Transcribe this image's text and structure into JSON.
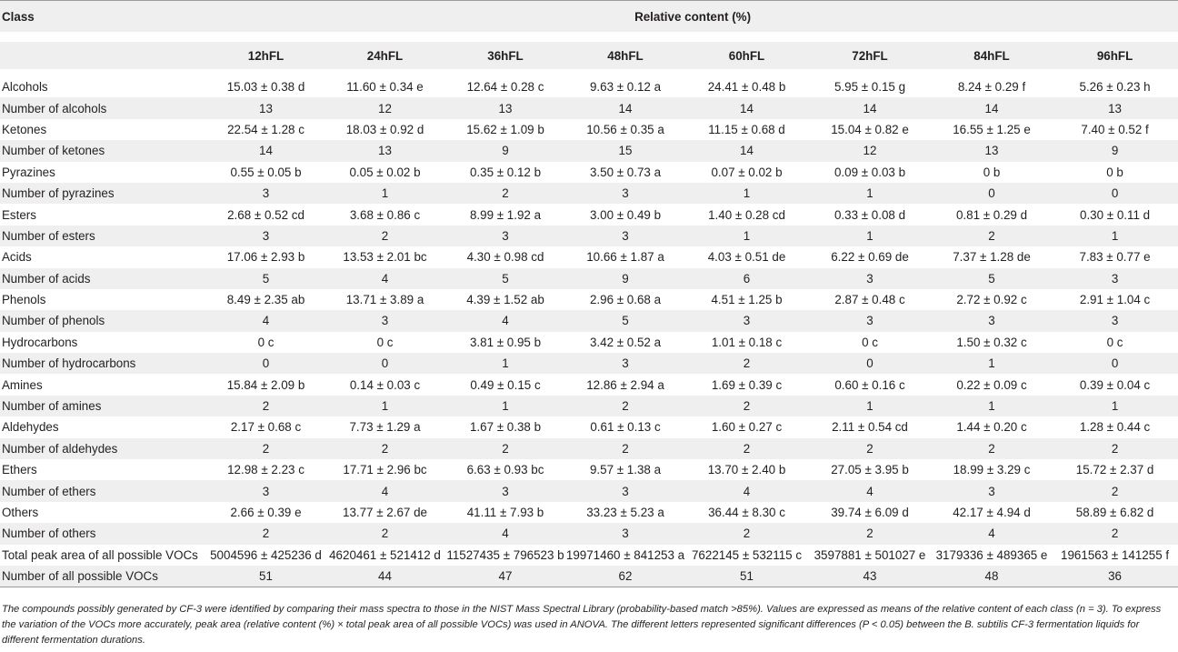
{
  "header": {
    "class_label": "Class",
    "group_label": "Relative content (%)",
    "columns": [
      "12hFL",
      "24hFL",
      "36hFL",
      "48hFL",
      "60hFL",
      "72hFL",
      "84hFL",
      "96hFL"
    ]
  },
  "rows": [
    {
      "label": "Alcohols",
      "values": [
        "15.03 ± 0.38 d",
        "11.60 ± 0.34 e",
        "12.64 ± 0.28 c",
        "9.63 ± 0.12 a",
        "24.41 ± 0.48 b",
        "5.95 ± 0.15 g",
        "8.24 ± 0.29 f",
        "5.26 ± 0.23 h"
      ]
    },
    {
      "label": "Number of alcohols",
      "values": [
        "13",
        "12",
        "13",
        "14",
        "14",
        "14",
        "14",
        "13"
      ]
    },
    {
      "label": "Ketones",
      "values": [
        "22.54 ± 1.28 c",
        "18.03 ± 0.92 d",
        "15.62 ± 1.09 b",
        "10.56 ± 0.35 a",
        "11.15 ± 0.68 d",
        "15.04 ± 0.82 e",
        "16.55 ± 1.25 e",
        "7.40 ± 0.52 f"
      ]
    },
    {
      "label": "Number of ketones",
      "values": [
        "14",
        "13",
        "9",
        "15",
        "14",
        "12",
        "13",
        "9"
      ]
    },
    {
      "label": "Pyrazines",
      "values": [
        "0.55 ± 0.05 b",
        "0.05 ± 0.02 b",
        "0.35 ± 0.12 b",
        "3.50 ± 0.73 a",
        "0.07 ± 0.02 b",
        "0.09 ± 0.03 b",
        "0 b",
        "0 b"
      ]
    },
    {
      "label": "Number of pyrazines",
      "values": [
        "3",
        "1",
        "2",
        "3",
        "1",
        "1",
        "0",
        "0"
      ]
    },
    {
      "label": "Esters",
      "values": [
        "2.68 ± 0.52 cd",
        "3.68 ± 0.86 c",
        "8.99 ± 1.92 a",
        "3.00 ± 0.49 b",
        "1.40 ± 0.28 cd",
        "0.33 ± 0.08 d",
        "0.81 ± 0.29 d",
        "0.30 ± 0.11 d"
      ]
    },
    {
      "label": "Number of esters",
      "values": [
        "3",
        "2",
        "3",
        "3",
        "1",
        "1",
        "2",
        "1"
      ]
    },
    {
      "label": "Acids",
      "values": [
        "17.06 ± 2.93 b",
        "13.53 ± 2.01 bc",
        "4.30 ± 0.98 cd",
        "10.66 ± 1.87 a",
        "4.03 ± 0.51 de",
        "6.22 ± 0.69 de",
        "7.37 ± 1.28 de",
        "7.83 ± 0.77 e"
      ]
    },
    {
      "label": "Number of acids",
      "values": [
        "5",
        "4",
        "5",
        "9",
        "6",
        "3",
        "5",
        "3"
      ]
    },
    {
      "label": "Phenols",
      "values": [
        "8.49 ± 2.35 ab",
        "13.71 ± 3.89 a",
        "4.39 ± 1.52 ab",
        "2.96 ± 0.68 a",
        "4.51 ± 1.25 b",
        "2.87 ± 0.48 c",
        "2.72 ± 0.92 c",
        "2.91 ± 1.04 c"
      ]
    },
    {
      "label": "Number of phenols",
      "values": [
        "4",
        "3",
        "4",
        "5",
        "3",
        "3",
        "3",
        "3"
      ]
    },
    {
      "label": "Hydrocarbons",
      "values": [
        "0 c",
        "0 c",
        "3.81 ± 0.95 b",
        "3.42 ± 0.52 a",
        "1.01 ± 0.18 c",
        "0 c",
        "1.50 ± 0.32 c",
        "0 c"
      ]
    },
    {
      "label": "Number of hydrocarbons",
      "values": [
        "0",
        "0",
        "1",
        "3",
        "2",
        "0",
        "1",
        "0"
      ]
    },
    {
      "label": "Amines",
      "values": [
        "15.84 ± 2.09 b",
        "0.14 ± 0.03 c",
        "0.49 ± 0.15 c",
        "12.86 ± 2.94 a",
        "1.69 ± 0.39 c",
        "0.60 ± 0.16 c",
        "0.22 ± 0.09 c",
        "0.39 ± 0.04 c"
      ]
    },
    {
      "label": "Number of amines",
      "values": [
        "2",
        "1",
        "1",
        "2",
        "2",
        "1",
        "1",
        "1"
      ]
    },
    {
      "label": "Aldehydes",
      "values": [
        "2.17 ± 0.68 c",
        "7.73 ± 1.29 a",
        "1.67 ± 0.38 b",
        "0.61 ± 0.13 c",
        "1.60 ± 0.27 c",
        "2.11 ± 0.54 cd",
        "1.44 ± 0.20 c",
        "1.28 ± 0.44 c"
      ]
    },
    {
      "label": "Number of aldehydes",
      "values": [
        "2",
        "2",
        "2",
        "2",
        "2",
        "2",
        "2",
        "2"
      ]
    },
    {
      "label": "Ethers",
      "values": [
        "12.98 ± 2.23 c",
        "17.71 ± 2.96 bc",
        "6.63 ± 0.93 bc",
        "9.57 ± 1.38 a",
        "13.70 ± 2.40 b",
        "27.05 ± 3.95 b",
        "18.99 ± 3.29 c",
        "15.72 ± 2.37 d"
      ]
    },
    {
      "label": "Number of ethers",
      "values": [
        "3",
        "4",
        "3",
        "3",
        "4",
        "4",
        "3",
        "2"
      ]
    },
    {
      "label": "Others",
      "values": [
        "2.66 ± 0.39 e",
        "13.77 ± 2.67 de",
        "41.11 ± 7.93 b",
        "33.23 ± 5.23 a",
        "36.44 ± 8.30 c",
        "39.74 ± 6.09 d",
        "42.17 ± 4.94 d",
        "58.89 ± 6.82 d"
      ]
    },
    {
      "label": "Number of others",
      "values": [
        "2",
        "2",
        "4",
        "3",
        "2",
        "2",
        "4",
        "2"
      ]
    },
    {
      "label": "Total peak area of all possible VOCs",
      "values": [
        "5004596 ± 425236 d",
        "4620461 ± 521412 d",
        "11527435 ± 796523 b",
        "19971460 ± 841253 a",
        "7622145 ± 532115 c",
        "3597881 ± 501027 e",
        "3179336 ± 489365 e",
        "1961563 ± 141255 f"
      ]
    },
    {
      "label": "Number of all possible VOCs",
      "values": [
        "51",
        "44",
        "47",
        "62",
        "51",
        "43",
        "48",
        "36"
      ]
    }
  ],
  "footnote": "The compounds possibly generated by CF-3 were identified by comparing their mass spectra to those in the NIST Mass Spectral Library (probability-based match >85%). Values are expressed as means of the relative content of each class (n = 3). To express the variation of the VOCs more accurately, peak area (relative content (%) × total peak area of all possible VOCs) was used in ANOVA. The different letters represented significant differences (P < 0.05) between the B. subtilis CF-3 fermentation liquids for different fermentation durations."
}
